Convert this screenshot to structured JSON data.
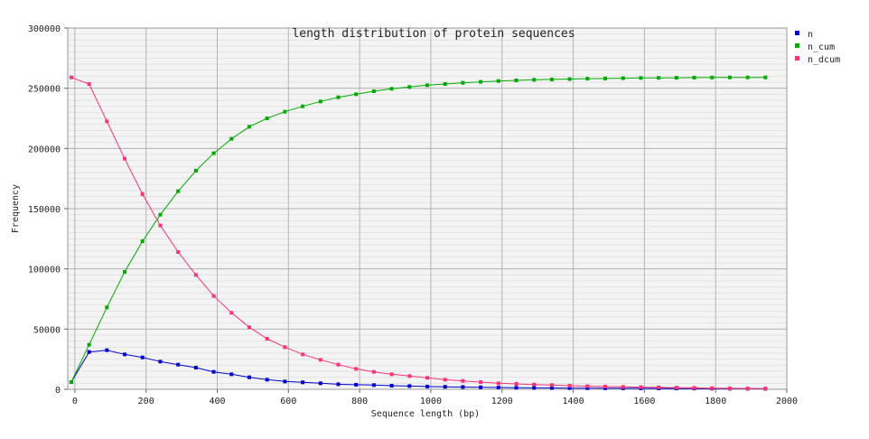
{
  "chart_data": {
    "type": "line",
    "title": "length distribution of protein sequences",
    "xlabel": "Sequence length (bp)",
    "ylabel": "Frequency",
    "xlim": [
      -20,
      2000
    ],
    "ylim": [
      0,
      300000
    ],
    "x_ticks": [
      0,
      200,
      400,
      600,
      800,
      1000,
      1200,
      1400,
      1600,
      1800,
      2000
    ],
    "x_tick_labels": [
      "0",
      "200",
      "400",
      "600",
      "800",
      "1000",
      "1200",
      "1400",
      "1600",
      "1800",
      "2000"
    ],
    "y_ticks": [
      0,
      50000,
      100000,
      150000,
      200000,
      250000,
      300000
    ],
    "y_tick_labels": [
      "0",
      "50000",
      "100000",
      "150000",
      "200000",
      "250000",
      "300000"
    ],
    "grid": true,
    "legend_position": "right",
    "x": [
      -10,
      40,
      90,
      140,
      190,
      240,
      290,
      340,
      390,
      440,
      490,
      540,
      590,
      640,
      690,
      740,
      790,
      840,
      890,
      940,
      990,
      1040,
      1090,
      1140,
      1190,
      1240,
      1290,
      1340,
      1390,
      1440,
      1490,
      1540,
      1590,
      1640,
      1690,
      1740,
      1790,
      1840,
      1890,
      1940
    ],
    "series": [
      {
        "name": "n",
        "color": "#0000cc",
        "values": [
          6000,
          31000,
          32500,
          29000,
          26500,
          23000,
          20500,
          18000,
          14500,
          12500,
          10000,
          8000,
          6500,
          5800,
          5000,
          4200,
          3800,
          3500,
          3000,
          2700,
          2300,
          2100,
          1900,
          1700,
          1500,
          1300,
          1200,
          1100,
          1000,
          950,
          900,
          850,
          800,
          750,
          700,
          650,
          600,
          550,
          500,
          450
        ]
      },
      {
        "name": "n_cum",
        "color": "#00aa00",
        "values": [
          6000,
          37000,
          68000,
          97500,
          123000,
          145000,
          164500,
          181500,
          196000,
          208000,
          218000,
          225000,
          230500,
          235000,
          239000,
          242500,
          245000,
          247500,
          249500,
          251000,
          252500,
          253500,
          254500,
          255300,
          256000,
          256500,
          257000,
          257300,
          257600,
          257900,
          258100,
          258300,
          258500,
          258600,
          258700,
          258800,
          258900,
          259000,
          259000,
          259000
        ]
      },
      {
        "name": "n_dcum",
        "color": "#ff3377",
        "values": [
          259000,
          253500,
          222500,
          191500,
          162000,
          136000,
          114000,
          95000,
          77500,
          63500,
          51500,
          42000,
          35000,
          29000,
          24500,
          20500,
          17000,
          14500,
          12500,
          11000,
          9500,
          8000,
          7000,
          6000,
          5000,
          4500,
          4000,
          3500,
          3000,
          2600,
          2300,
          2000,
          1800,
          1600,
          1400,
          1200,
          1000,
          800,
          700,
          600
        ]
      }
    ]
  }
}
